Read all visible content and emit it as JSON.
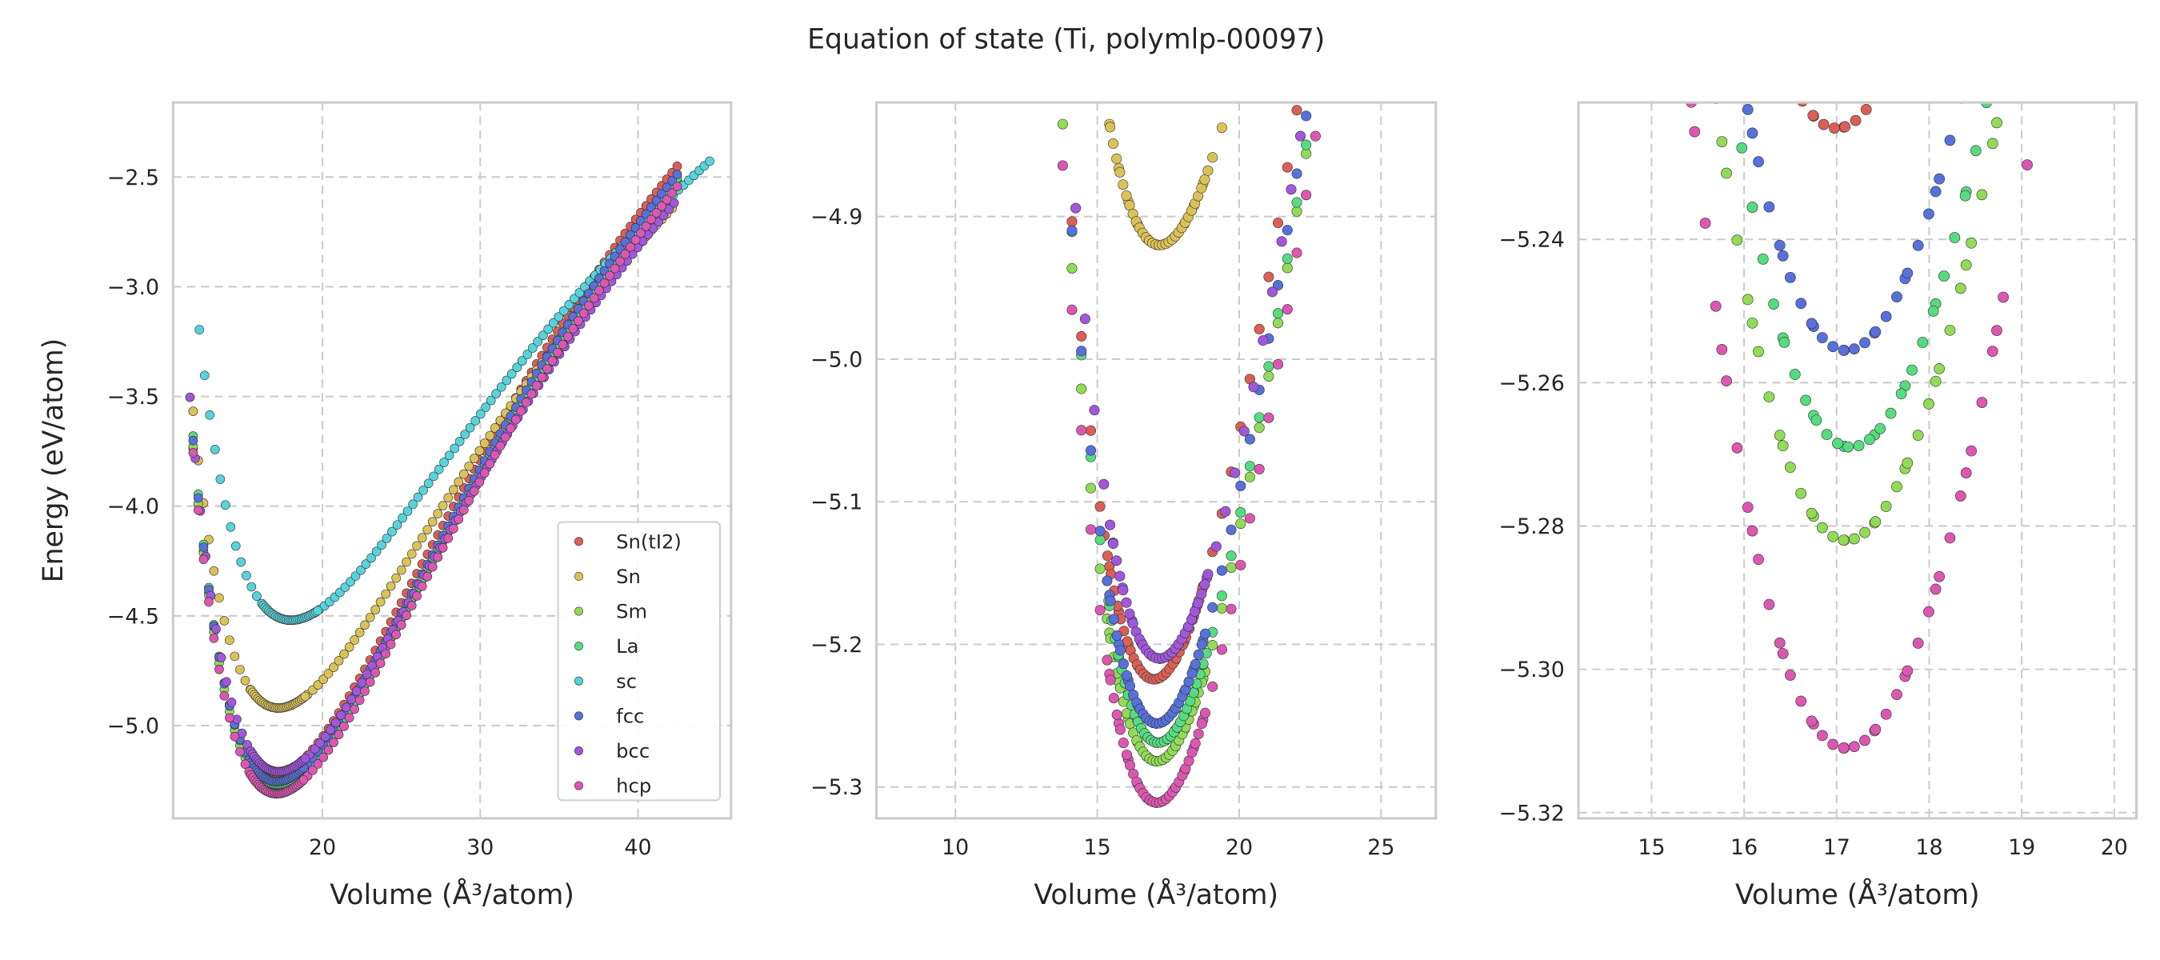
{
  "chart_data": {
    "type": "scatter",
    "title": "Equation of state (Ti, polymlp-00097)",
    "series": [
      {
        "name": "Sn(tI2)",
        "color": "#db5f57",
        "E0": -5.2245,
        "V0": 17.0,
        "B": 0.9,
        "Bp": 5,
        "vrange": [
          11.8,
          42.5
        ]
      },
      {
        "name": "Sn",
        "color": "#dbc257",
        "E0": -4.92,
        "V0": 17.2,
        "B": 0.75,
        "Bp": 5,
        "vrange": [
          11.8,
          42.3
        ]
      },
      {
        "name": "Sm",
        "color": "#91db57",
        "E0": -5.282,
        "V0": 17.1,
        "B": 0.9,
        "Bp": 5,
        "vrange": [
          11.8,
          42.5
        ]
      },
      {
        "name": "La",
        "color": "#57db80",
        "E0": -5.269,
        "V0": 17.15,
        "B": 0.9,
        "Bp": 5,
        "vrange": [
          11.8,
          42.5
        ]
      },
      {
        "name": "sc",
        "color": "#57d3db",
        "E0": -4.52,
        "V0": 18.0,
        "B": 0.65,
        "Bp": 5,
        "vrange": [
          12.2,
          44.7
        ]
      },
      {
        "name": "fcc",
        "color": "#5770db",
        "E0": -5.2555,
        "V0": 17.1,
        "B": 0.9,
        "Bp": 5,
        "vrange": [
          11.8,
          42.5
        ]
      },
      {
        "name": "bcc",
        "color": "#a157db",
        "E0": -5.21,
        "V0": 17.2,
        "B": 0.85,
        "Bp": 5,
        "vrange": [
          11.6,
          42.5
        ]
      },
      {
        "name": "hcp",
        "color": "#db57b2",
        "E0": -5.311,
        "V0": 17.1,
        "B": 0.9,
        "Bp": 5,
        "vrange": [
          11.8,
          42.5
        ]
      }
    ],
    "panels": [
      {
        "xlabel": "Volume (Å³/atom)",
        "ylabel": "Energy (eV/atom)",
        "xlim": [
          10.53,
          45.9
        ],
        "ylim": [
          -5.423,
          -2.16
        ],
        "xticks": [
          20,
          30,
          40
        ],
        "yticks": [
          -5.0,
          -4.5,
          -4.0,
          -3.5,
          -3.0,
          -2.5
        ],
        "xtick_labels": [
          "20",
          "30",
          "40"
        ],
        "ytick_labels": [
          "−5.0",
          "−4.5",
          "−4.0",
          "−3.5",
          "−3.0",
          "−2.5"
        ],
        "legend": "lower-right"
      },
      {
        "xlabel": "Volume (Å³/atom)",
        "ylabel": "",
        "xlim": [
          7.22,
          26.93
        ],
        "ylim": [
          -5.322,
          -4.82
        ],
        "xticks": [
          10,
          15,
          20,
          25
        ],
        "yticks": [
          -5.3,
          -5.2,
          -5.1,
          -5.0,
          -4.9
        ],
        "xtick_labels": [
          "10",
          "15",
          "20",
          "25"
        ],
        "ytick_labels": [
          "−5.3",
          "−5.2",
          "−5.1",
          "−5.0",
          "−4.9"
        ]
      },
      {
        "xlabel": "Volume (Å³/atom)",
        "ylabel": "",
        "xlim": [
          14.21,
          20.24
        ],
        "ylim": [
          -5.3208,
          -5.2209
        ],
        "xticks": [
          15,
          16,
          17,
          18,
          19,
          20
        ],
        "yticks": [
          -5.32,
          -5.3,
          -5.28,
          -5.26,
          -5.24
        ],
        "xtick_labels": [
          "15",
          "16",
          "17",
          "18",
          "19",
          "20"
        ],
        "ytick_labels": [
          "−5.32",
          "−5.30",
          "−5.28",
          "−5.26",
          "−5.24"
        ]
      }
    ],
    "grid": true
  }
}
